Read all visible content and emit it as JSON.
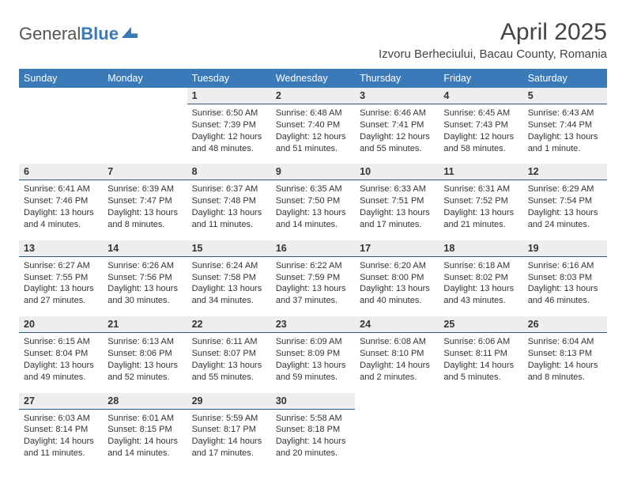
{
  "brand": {
    "name_a": "General",
    "name_b": "Blue"
  },
  "title": "April 2025",
  "location": "Izvoru Berheciului, Bacau County, Romania",
  "colors": {
    "header_bg": "#3a7ab8",
    "daynum_bg": "#eeeeee",
    "daynum_border": "#2b5a87",
    "text": "#333333",
    "bg": "#ffffff"
  },
  "days_of_week": [
    "Sunday",
    "Monday",
    "Tuesday",
    "Wednesday",
    "Thursday",
    "Friday",
    "Saturday"
  ],
  "weeks": [
    [
      null,
      null,
      {
        "n": "1",
        "sr": "Sunrise: 6:50 AM",
        "ss": "Sunset: 7:39 PM",
        "dl": "Daylight: 12 hours and 48 minutes."
      },
      {
        "n": "2",
        "sr": "Sunrise: 6:48 AM",
        "ss": "Sunset: 7:40 PM",
        "dl": "Daylight: 12 hours and 51 minutes."
      },
      {
        "n": "3",
        "sr": "Sunrise: 6:46 AM",
        "ss": "Sunset: 7:41 PM",
        "dl": "Daylight: 12 hours and 55 minutes."
      },
      {
        "n": "4",
        "sr": "Sunrise: 6:45 AM",
        "ss": "Sunset: 7:43 PM",
        "dl": "Daylight: 12 hours and 58 minutes."
      },
      {
        "n": "5",
        "sr": "Sunrise: 6:43 AM",
        "ss": "Sunset: 7:44 PM",
        "dl": "Daylight: 13 hours and 1 minute."
      }
    ],
    [
      {
        "n": "6",
        "sr": "Sunrise: 6:41 AM",
        "ss": "Sunset: 7:46 PM",
        "dl": "Daylight: 13 hours and 4 minutes."
      },
      {
        "n": "7",
        "sr": "Sunrise: 6:39 AM",
        "ss": "Sunset: 7:47 PM",
        "dl": "Daylight: 13 hours and 8 minutes."
      },
      {
        "n": "8",
        "sr": "Sunrise: 6:37 AM",
        "ss": "Sunset: 7:48 PM",
        "dl": "Daylight: 13 hours and 11 minutes."
      },
      {
        "n": "9",
        "sr": "Sunrise: 6:35 AM",
        "ss": "Sunset: 7:50 PM",
        "dl": "Daylight: 13 hours and 14 minutes."
      },
      {
        "n": "10",
        "sr": "Sunrise: 6:33 AM",
        "ss": "Sunset: 7:51 PM",
        "dl": "Daylight: 13 hours and 17 minutes."
      },
      {
        "n": "11",
        "sr": "Sunrise: 6:31 AM",
        "ss": "Sunset: 7:52 PM",
        "dl": "Daylight: 13 hours and 21 minutes."
      },
      {
        "n": "12",
        "sr": "Sunrise: 6:29 AM",
        "ss": "Sunset: 7:54 PM",
        "dl": "Daylight: 13 hours and 24 minutes."
      }
    ],
    [
      {
        "n": "13",
        "sr": "Sunrise: 6:27 AM",
        "ss": "Sunset: 7:55 PM",
        "dl": "Daylight: 13 hours and 27 minutes."
      },
      {
        "n": "14",
        "sr": "Sunrise: 6:26 AM",
        "ss": "Sunset: 7:56 PM",
        "dl": "Daylight: 13 hours and 30 minutes."
      },
      {
        "n": "15",
        "sr": "Sunrise: 6:24 AM",
        "ss": "Sunset: 7:58 PM",
        "dl": "Daylight: 13 hours and 34 minutes."
      },
      {
        "n": "16",
        "sr": "Sunrise: 6:22 AM",
        "ss": "Sunset: 7:59 PM",
        "dl": "Daylight: 13 hours and 37 minutes."
      },
      {
        "n": "17",
        "sr": "Sunrise: 6:20 AM",
        "ss": "Sunset: 8:00 PM",
        "dl": "Daylight: 13 hours and 40 minutes."
      },
      {
        "n": "18",
        "sr": "Sunrise: 6:18 AM",
        "ss": "Sunset: 8:02 PM",
        "dl": "Daylight: 13 hours and 43 minutes."
      },
      {
        "n": "19",
        "sr": "Sunrise: 6:16 AM",
        "ss": "Sunset: 8:03 PM",
        "dl": "Daylight: 13 hours and 46 minutes."
      }
    ],
    [
      {
        "n": "20",
        "sr": "Sunrise: 6:15 AM",
        "ss": "Sunset: 8:04 PM",
        "dl": "Daylight: 13 hours and 49 minutes."
      },
      {
        "n": "21",
        "sr": "Sunrise: 6:13 AM",
        "ss": "Sunset: 8:06 PM",
        "dl": "Daylight: 13 hours and 52 minutes."
      },
      {
        "n": "22",
        "sr": "Sunrise: 6:11 AM",
        "ss": "Sunset: 8:07 PM",
        "dl": "Daylight: 13 hours and 55 minutes."
      },
      {
        "n": "23",
        "sr": "Sunrise: 6:09 AM",
        "ss": "Sunset: 8:09 PM",
        "dl": "Daylight: 13 hours and 59 minutes."
      },
      {
        "n": "24",
        "sr": "Sunrise: 6:08 AM",
        "ss": "Sunset: 8:10 PM",
        "dl": "Daylight: 14 hours and 2 minutes."
      },
      {
        "n": "25",
        "sr": "Sunrise: 6:06 AM",
        "ss": "Sunset: 8:11 PM",
        "dl": "Daylight: 14 hours and 5 minutes."
      },
      {
        "n": "26",
        "sr": "Sunrise: 6:04 AM",
        "ss": "Sunset: 8:13 PM",
        "dl": "Daylight: 14 hours and 8 minutes."
      }
    ],
    [
      {
        "n": "27",
        "sr": "Sunrise: 6:03 AM",
        "ss": "Sunset: 8:14 PM",
        "dl": "Daylight: 14 hours and 11 minutes."
      },
      {
        "n": "28",
        "sr": "Sunrise: 6:01 AM",
        "ss": "Sunset: 8:15 PM",
        "dl": "Daylight: 14 hours and 14 minutes."
      },
      {
        "n": "29",
        "sr": "Sunrise: 5:59 AM",
        "ss": "Sunset: 8:17 PM",
        "dl": "Daylight: 14 hours and 17 minutes."
      },
      {
        "n": "30",
        "sr": "Sunrise: 5:58 AM",
        "ss": "Sunset: 8:18 PM",
        "dl": "Daylight: 14 hours and 20 minutes."
      },
      null,
      null,
      null
    ]
  ]
}
